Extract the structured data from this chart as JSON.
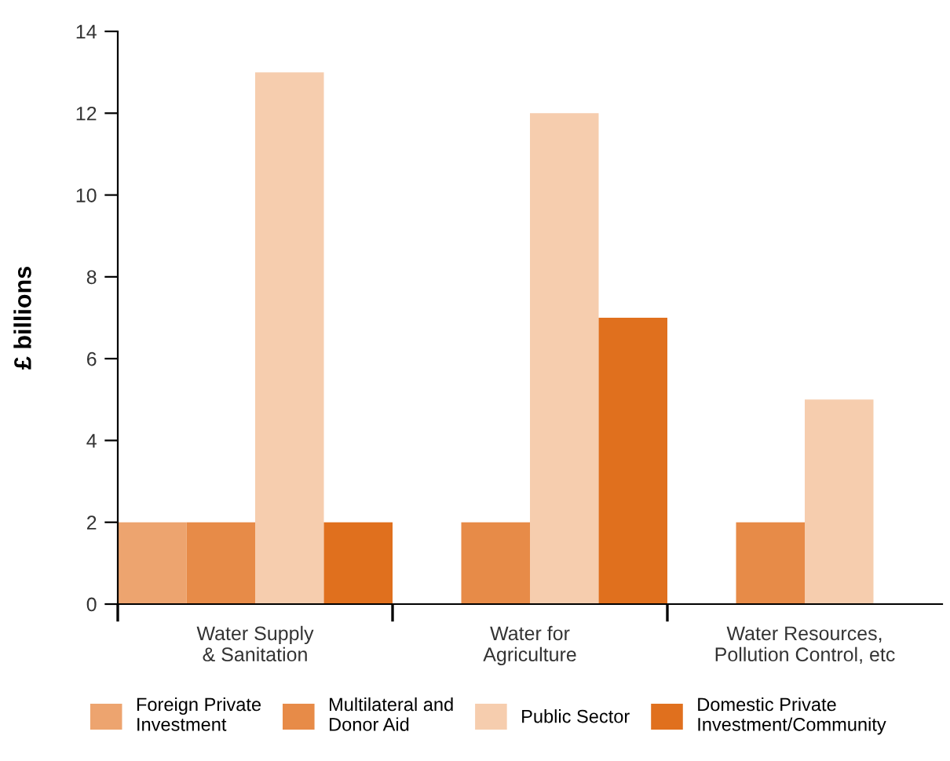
{
  "chart_data": {
    "type": "bar",
    "ylabel": "£ billions",
    "categories": [
      "Water Supply\n& Sanitation",
      "Water for\nAgriculture",
      "Water Resources,\nPollution Control, etc"
    ],
    "series": [
      {
        "name": "Foreign Private\nInvestment",
        "color": "#eda46f",
        "values": [
          2,
          null,
          null
        ]
      },
      {
        "name": "Multilateral and\nDonor Aid",
        "color": "#e78b48",
        "values": [
          2,
          2,
          2
        ]
      },
      {
        "name": "Public Sector",
        "color": "#f6cdae",
        "values": [
          13,
          12,
          5
        ]
      },
      {
        "name": "Domestic Private\nInvestment/Community",
        "color": "#e0701e",
        "values": [
          2,
          7,
          null
        ]
      }
    ],
    "ylim": [
      0,
      14
    ],
    "yticks": [
      0,
      2,
      4,
      6,
      8,
      10,
      12,
      14
    ],
    "grid": false,
    "legend": "bottom"
  }
}
